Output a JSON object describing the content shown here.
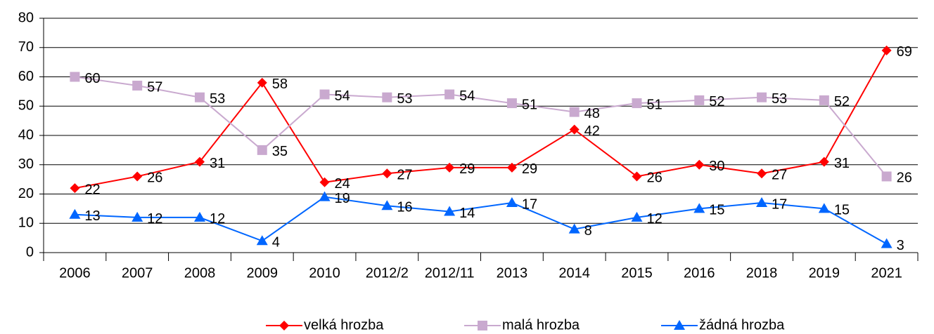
{
  "chart_data": {
    "type": "line",
    "categories": [
      "2006",
      "2007",
      "2008",
      "2009",
      "2010",
      "2012/2",
      "2012/11",
      "2013",
      "2014",
      "2015",
      "2016",
      "2018",
      "2019",
      "2021"
    ],
    "series": [
      {
        "name": "velká hrozba",
        "color": "#ff0000",
        "marker": "diamond",
        "values": [
          22,
          26,
          31,
          58,
          24,
          27,
          29,
          29,
          42,
          26,
          30,
          27,
          31,
          69
        ]
      },
      {
        "name": "malá hrozba",
        "color": "#c9a9cf",
        "marker": "square",
        "values": [
          60,
          57,
          53,
          35,
          54,
          53,
          54,
          51,
          48,
          51,
          52,
          53,
          52,
          26
        ]
      },
      {
        "name": "žádná hrozba",
        "color": "#0066ff",
        "marker": "triangle",
        "values": [
          13,
          12,
          12,
          4,
          19,
          16,
          14,
          17,
          8,
          12,
          15,
          17,
          15,
          3
        ]
      }
    ],
    "ylim": [
      0,
      80
    ],
    "yticks": [
      0,
      10,
      20,
      30,
      40,
      50,
      60,
      70,
      80
    ],
    "grid": true,
    "legend": "bottom"
  }
}
